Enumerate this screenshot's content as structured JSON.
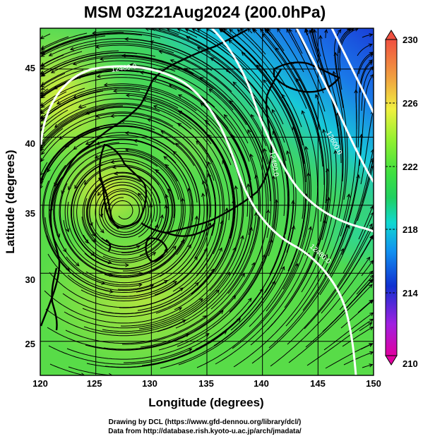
{
  "title": "MSM 03Z21Aug2024 (200.0hPa)",
  "map": {
    "lon_range": [
      120,
      150
    ],
    "lat_range": [
      22.5,
      48
    ],
    "lon_ticks": [
      "120",
      "125",
      "130",
      "135",
      "140",
      "145",
      "150"
    ],
    "lat_ticks": [
      "25",
      "30",
      "35",
      "40",
      "45"
    ],
    "xlabel": "Longitude (degrees)",
    "ylabel": "Latitude  (degrees)"
  },
  "colorbar": {
    "range": [
      210,
      230
    ],
    "ticks": [
      "210",
      "214",
      "218",
      "222",
      "226",
      "230"
    ],
    "colors": [
      "#e000a0",
      "#a020e0",
      "#1030d0",
      "#1090f0",
      "#10d8d0",
      "#20d060",
      "#40e040",
      "#90f030",
      "#f0f040",
      "#f0a040",
      "#f05040"
    ]
  },
  "contours": {
    "labels": [
      "12480.0",
      "12480.0",
      "12600.0",
      "12480.0"
    ],
    "color": "#ffffff"
  },
  "credits": {
    "line1": "Drawing by DCL (https://www.gfd-dennou.org/library/dcl/)",
    "line2": "Data from http://database.rish.kyoto-u.ac.jp/arch/jmadata/"
  }
}
